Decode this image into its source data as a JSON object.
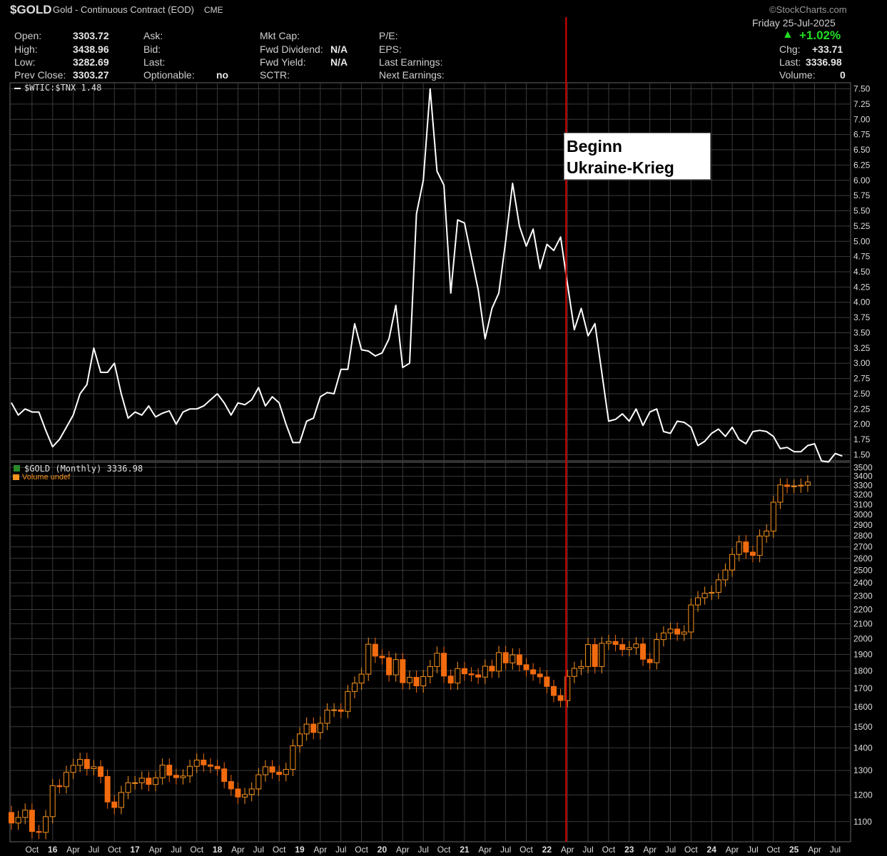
{
  "header": {
    "symbol": "$GOLD",
    "name": "Gold - Continuous Contract (EOD)",
    "exchange": "CME",
    "brand": "©StockCharts.com",
    "date": "Friday  25-Jul-2025",
    "change_pct": "+1.02%",
    "open_label": "Open:",
    "open": "3303.72",
    "high_label": "High:",
    "high": "3438.96",
    "low_label": "Low:",
    "low": "3282.69",
    "prev_label": "Prev Close:",
    "prev": "3303.27",
    "ask_label": "Ask:",
    "bid_label": "Bid:",
    "last_label": "Last:",
    "optionable_label": "Optionable:",
    "optionable": "no",
    "mktcap_label": "Mkt Cap:",
    "fwddiv_label": "Fwd Dividend:",
    "fwddiv": "N/A",
    "fwdyield_label": "Fwd Yield:",
    "fwdyield": "N/A",
    "sctr_label": "SCTR:",
    "pe_label": "P/E:",
    "eps_label": "EPS:",
    "lastearn_label": "Last Earnings:",
    "nextearn_label": "Next Earnings:",
    "chg_label": "Chg:",
    "chg": "+33.71",
    "last2_label": "Last:",
    "last": "3336.98",
    "volume_label": "Volume:",
    "volume": "0"
  },
  "annotation": {
    "line1": "Beginn",
    "line2": "Ukraine-Krieg"
  },
  "colors": {
    "background": "#000000",
    "grid": "#3a3a3a",
    "ratio_line": "#ffffff",
    "candle_up": "#f7931e",
    "candle_down": "#f26b0f",
    "event_line": "#e00000",
    "up_arrow": "#22dd22"
  },
  "chart_data": [
    {
      "type": "line",
      "panel": "upper",
      "legend": "$WTIC:$TNX 1.48",
      "y_ticks": [
        "7.50",
        "7.25",
        "7.00",
        "6.75",
        "6.50",
        "6.25",
        "6.00",
        "5.75",
        "5.50",
        "5.25",
        "5.00",
        "4.75",
        "4.50",
        "4.25",
        "4.00",
        "3.75",
        "3.50",
        "3.25",
        "3.00",
        "2.75",
        "2.50",
        "2.25",
        "2.00",
        "1.75",
        "1.50"
      ],
      "ylim": [
        1.4,
        7.6
      ],
      "x_start": "2015-07",
      "series": [
        {
          "values": [
            2.35,
            2.15,
            2.25,
            2.2,
            2.2,
            1.9,
            1.63,
            1.75,
            1.95,
            2.15,
            2.5,
            2.65,
            3.25,
            2.85,
            2.85,
            3.0,
            2.5,
            2.1,
            2.2,
            2.15,
            2.3,
            2.12,
            2.18,
            2.22,
            2.0,
            2.2,
            2.25,
            2.25,
            2.3,
            2.4,
            2.5,
            2.35,
            2.15,
            2.35,
            2.32,
            2.4,
            2.6,
            2.3,
            2.45,
            2.35,
            2.0,
            1.7,
            1.7,
            2.05,
            2.1,
            2.45,
            2.52,
            2.5,
            2.9,
            2.9,
            3.65,
            3.22,
            3.2,
            3.12,
            3.17,
            3.4,
            3.95,
            2.93,
            3.0,
            5.45,
            6.0,
            7.5,
            6.15,
            5.92,
            4.15,
            5.35,
            5.3,
            4.75,
            4.2,
            3.4,
            3.9,
            4.15,
            5.0,
            5.95,
            5.25,
            4.92,
            5.2,
            4.55,
            4.95,
            4.85,
            5.07,
            4.3,
            3.55,
            3.9,
            3.45,
            3.65,
            2.85,
            2.05,
            2.08,
            2.17,
            2.05,
            2.25,
            1.98,
            2.2,
            2.25,
            1.88,
            1.85,
            2.05,
            2.03,
            1.95,
            1.65,
            1.72,
            1.85,
            1.92,
            1.8,
            1.95,
            1.75,
            1.68,
            1.88,
            1.9,
            1.88,
            1.8,
            1.6,
            1.62,
            1.55,
            1.55,
            1.65,
            1.68,
            1.4,
            1.38,
            1.52,
            1.48
          ]
        }
      ]
    },
    {
      "type": "candlestick",
      "panel": "lower",
      "legend": "$GOLD (Monthly) 3336.98",
      "legend2": "Volume undef",
      "y_ticks": [
        "3500",
        "3400",
        "3300",
        "3200",
        "3100",
        "3000",
        "2900",
        "2800",
        "2700",
        "2600",
        "2500",
        "2400",
        "2300",
        "2200",
        "2100",
        "2000",
        "1900",
        "1800",
        "1700",
        "1600",
        "1500",
        "1400",
        "1300",
        "1200",
        "1100"
      ],
      "ylim": [
        1030,
        3560
      ],
      "scale": "log",
      "x_labels": [
        "Oct",
        "16",
        "Apr",
        "Jul",
        "Oct",
        "17",
        "Apr",
        "Jul",
        "Oct",
        "18",
        "Apr",
        "Jul",
        "Oct",
        "19",
        "Apr",
        "Jul",
        "Oct",
        "20",
        "Apr",
        "Jul",
        "Oct",
        "21",
        "Apr",
        "Jul",
        "Oct",
        "22",
        "Apr",
        "Jul",
        "Oct",
        "23",
        "Apr",
        "Jul",
        "Oct",
        "24",
        "Apr",
        "Jul",
        "Oct",
        "25",
        "Apr",
        "Jul"
      ],
      "x_start": "2015-07",
      "close": [
        1095,
        1115,
        1142,
        1065,
        1062,
        1118,
        1237,
        1233,
        1292,
        1322,
        1348,
        1308,
        1316,
        1275,
        1173,
        1152,
        1210,
        1249,
        1249,
        1268,
        1242,
        1269,
        1323,
        1280,
        1270,
        1277,
        1318,
        1345,
        1324,
        1318,
        1307,
        1254,
        1224,
        1192,
        1202,
        1224,
        1282,
        1316,
        1293,
        1283,
        1305,
        1409,
        1465,
        1513,
        1472,
        1517,
        1584,
        1585,
        1577,
        1683,
        1730,
        1781,
        1964,
        1889,
        1879,
        1777,
        1868,
        1732,
        1763,
        1714,
        1767,
        1826,
        1907,
        1770,
        1730,
        1814,
        1783,
        1777,
        1764,
        1828,
        1799,
        1911,
        1848,
        1897,
        1837,
        1807,
        1782,
        1765,
        1711,
        1661,
        1634,
        1768,
        1815,
        1826,
        1962,
        1826,
        1970,
        1982,
        1962,
        1930,
        1942,
        1966,
        1870,
        1849,
        1994,
        2038,
        2064,
        2030,
        2044,
        2233,
        2286,
        2320,
        2327,
        2424,
        2503,
        2634,
        2744,
        2654,
        2625,
        2797,
        2843,
        3124,
        3305,
        3289,
        3294,
        3303,
        3337
      ]
    }
  ],
  "event_date": "2022-02"
}
